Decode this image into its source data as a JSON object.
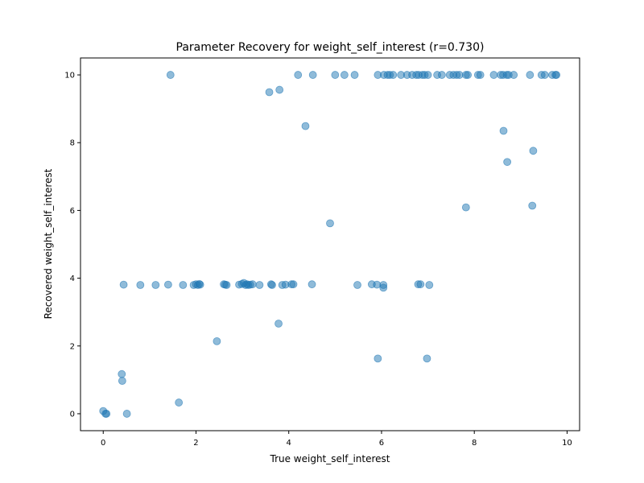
{
  "chart_data": {
    "type": "scatter",
    "title": "Parameter Recovery for weight_self_interest (r=0.730)",
    "xlabel": "True weight_self_interest",
    "ylabel": "Recovered weight_self_interest",
    "xlim": [
      -0.49,
      10.27
    ],
    "ylim": [
      -0.5,
      10.5
    ],
    "xticks": [
      0,
      2,
      4,
      6,
      8,
      10
    ],
    "yticks": [
      0,
      2,
      4,
      6,
      8,
      10
    ],
    "grid": false,
    "marker_color": "#1f77b4",
    "marker_alpha": 0.5,
    "points": [
      [
        0.0,
        0.08
      ],
      [
        0.05,
        0.0
      ],
      [
        0.07,
        0.0
      ],
      [
        0.4,
        1.17
      ],
      [
        0.41,
        0.97
      ],
      [
        0.51,
        0.0
      ],
      [
        1.63,
        0.33
      ],
      [
        2.45,
        2.14
      ],
      [
        3.78,
        2.66
      ],
      [
        5.92,
        1.63
      ],
      [
        6.98,
        1.63
      ],
      [
        0.44,
        3.81
      ],
      [
        0.8,
        3.8
      ],
      [
        1.13,
        3.8
      ],
      [
        1.4,
        3.81
      ],
      [
        1.72,
        3.8
      ],
      [
        1.95,
        3.8
      ],
      [
        2.0,
        3.82
      ],
      [
        2.04,
        3.8
      ],
      [
        2.07,
        3.83
      ],
      [
        2.09,
        3.81
      ],
      [
        2.6,
        3.82
      ],
      [
        2.63,
        3.81
      ],
      [
        2.66,
        3.8
      ],
      [
        2.93,
        3.81
      ],
      [
        2.99,
        3.83
      ],
      [
        3.03,
        3.86
      ],
      [
        3.07,
        3.8
      ],
      [
        3.1,
        3.82
      ],
      [
        3.13,
        3.8
      ],
      [
        3.17,
        3.81
      ],
      [
        3.22,
        3.82
      ],
      [
        3.37,
        3.8
      ],
      [
        3.62,
        3.82
      ],
      [
        3.64,
        3.8
      ],
      [
        3.86,
        3.8
      ],
      [
        3.93,
        3.81
      ],
      [
        4.06,
        3.82
      ],
      [
        4.1,
        3.82
      ],
      [
        4.5,
        3.82
      ],
      [
        5.48,
        3.8
      ],
      [
        5.79,
        3.82
      ],
      [
        5.9,
        3.81
      ],
      [
        6.04,
        3.8
      ],
      [
        6.04,
        3.72
      ],
      [
        6.79,
        3.82
      ],
      [
        6.84,
        3.82
      ],
      [
        7.03,
        3.8
      ],
      [
        4.89,
        5.62
      ],
      [
        7.82,
        6.09
      ],
      [
        9.25,
        6.14
      ],
      [
        8.71,
        7.43
      ],
      [
        9.27,
        7.76
      ],
      [
        8.63,
        8.35
      ],
      [
        4.36,
        8.49
      ],
      [
        3.58,
        9.49
      ],
      [
        3.8,
        9.56
      ],
      [
        1.45,
        10.0
      ],
      [
        4.2,
        10.0
      ],
      [
        4.52,
        10.0
      ],
      [
        5.0,
        10.0
      ],
      [
        5.2,
        10.0
      ],
      [
        5.42,
        10.0
      ],
      [
        5.92,
        10.0
      ],
      [
        6.05,
        10.0
      ],
      [
        6.13,
        10.0
      ],
      [
        6.18,
        10.0
      ],
      [
        6.25,
        10.0
      ],
      [
        6.42,
        10.0
      ],
      [
        6.55,
        10.0
      ],
      [
        6.66,
        10.0
      ],
      [
        6.75,
        10.0
      ],
      [
        6.8,
        10.0
      ],
      [
        6.88,
        10.0
      ],
      [
        6.93,
        10.0
      ],
      [
        7.0,
        10.0
      ],
      [
        7.2,
        10.0
      ],
      [
        7.3,
        10.0
      ],
      [
        7.47,
        10.0
      ],
      [
        7.55,
        10.0
      ],
      [
        7.62,
        10.0
      ],
      [
        7.68,
        10.0
      ],
      [
        7.82,
        10.0
      ],
      [
        7.86,
        10.0
      ],
      [
        8.08,
        10.0
      ],
      [
        8.13,
        10.0
      ],
      [
        8.42,
        10.0
      ],
      [
        8.57,
        10.0
      ],
      [
        8.62,
        10.0
      ],
      [
        8.7,
        10.0
      ],
      [
        8.74,
        10.0
      ],
      [
        8.85,
        10.0
      ],
      [
        9.2,
        10.0
      ],
      [
        9.45,
        10.0
      ],
      [
        9.52,
        10.0
      ],
      [
        9.68,
        10.0
      ],
      [
        9.75,
        10.0
      ],
      [
        9.77,
        10.0
      ]
    ]
  }
}
